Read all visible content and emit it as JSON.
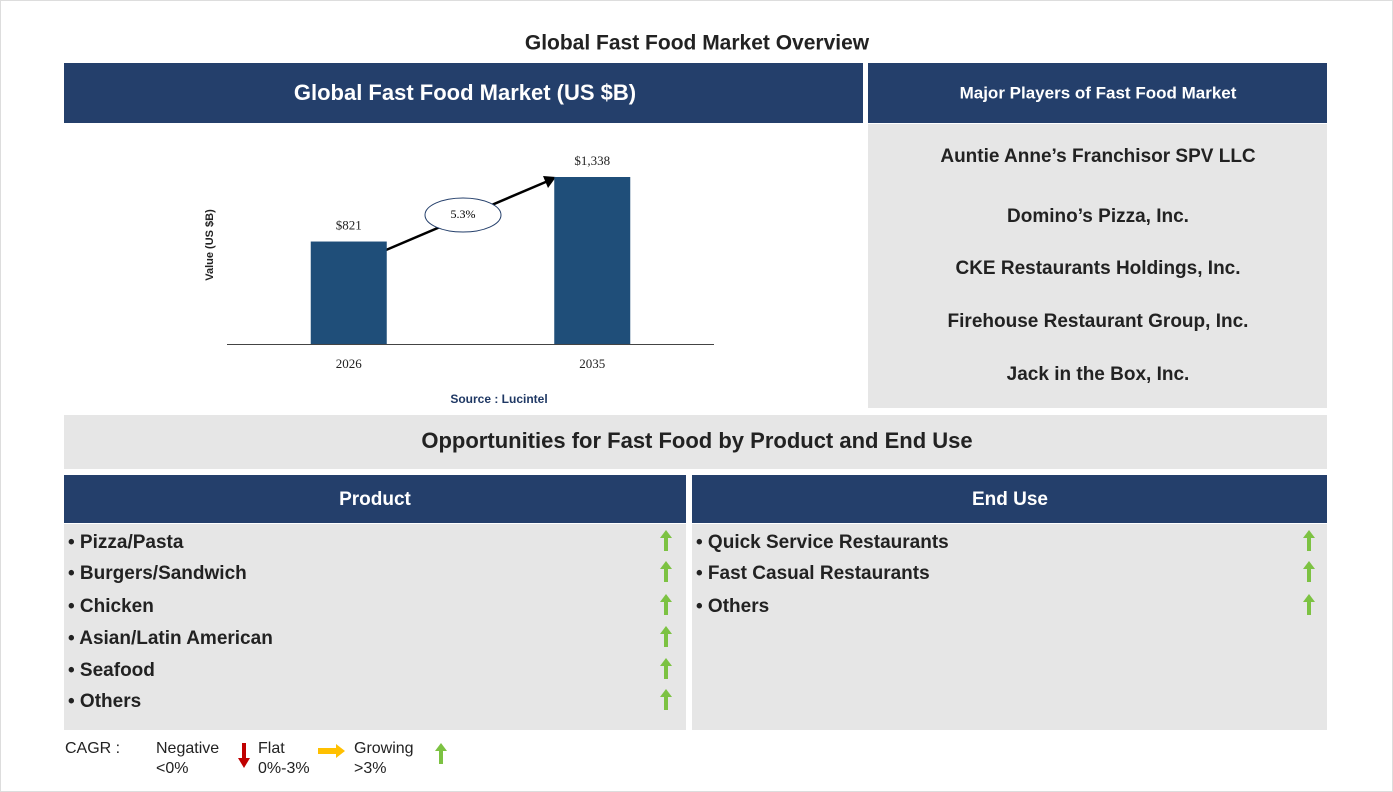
{
  "title": "Global Fast Food Market Overview",
  "chart_data": {
    "type": "bar",
    "title": "Global Fast Food Market (US $B)",
    "categories": [
      "2026",
      "2035"
    ],
    "values": [
      821,
      1338
    ],
    "value_labels": [
      "$821",
      "$1,338"
    ],
    "color": "#1f4e79",
    "ylim": [
      0,
      1338
    ],
    "y_label": "Value (US $B)",
    "annotation": "5.3%",
    "source": "Source : Lucintel"
  },
  "players": {
    "title": "Major Players of Fast Food Market",
    "items": [
      "Auntie Anne’s Franchisor SPV LLC",
      "Domino’s Pizza, Inc.",
      "CKE Restaurants Holdings, Inc.",
      "Firehouse Restaurant Group, Inc.",
      "Jack in the Box, Inc."
    ]
  },
  "opportunities": {
    "title": "Opportunities for Fast Food by Product and End Use",
    "product": {
      "title": "Product",
      "items": [
        "• Pizza/Pasta",
        "• Burgers/Sandwich",
        "• Chicken",
        "• Asian/Latin American",
        "• Seafood",
        "• Others"
      ]
    },
    "end_use": {
      "title": "End Use",
      "items": [
        "• Quick Service Restaurants",
        "• Fast Casual Restaurants",
        "• Others"
      ]
    }
  },
  "legend": {
    "label": "CAGR :",
    "items": [
      {
        "name": "Negative",
        "range": "<0%"
      },
      {
        "name": "Flat",
        "range": "0%-3%"
      },
      {
        "name": "Growing",
        "range": ">3%"
      }
    ]
  }
}
